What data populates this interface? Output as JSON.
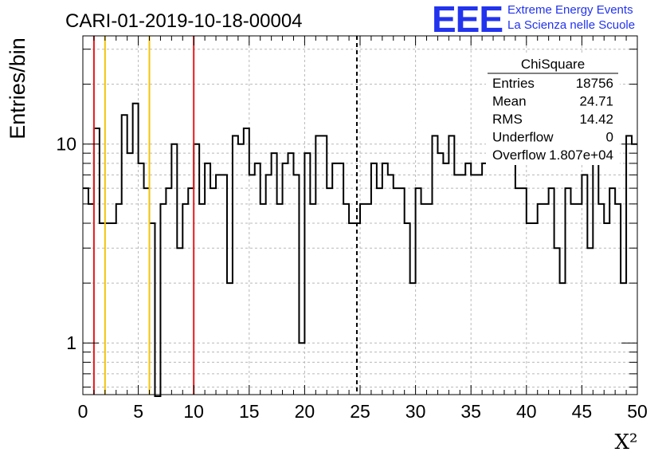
{
  "header": {
    "run_id": "CARI-01-2019-10-18-00004",
    "logo_text": "EEE",
    "logo_line1": "Extreme Energy Events",
    "logo_line2": "La Scienza nelle Scuole",
    "logo_color": "#2233ee"
  },
  "stats": {
    "name": "ChiSquare",
    "rows": [
      {
        "label": "Entries",
        "value": "18756"
      },
      {
        "label": "Mean",
        "value": "24.71"
      },
      {
        "label": "RMS",
        "value": "14.42"
      },
      {
        "label": "Underflow",
        "value": "0"
      },
      {
        "label": "Overflow",
        "value": "1.807e+04"
      }
    ]
  },
  "chart_data": {
    "type": "histogram",
    "xlabel": "X²",
    "ylabel": "Entries/bin",
    "xlim": [
      0,
      50
    ],
    "ylim": [
      0.55,
      35
    ],
    "yscale": "log",
    "grid": true,
    "xticks": [
      0,
      5,
      10,
      15,
      20,
      25,
      30,
      35,
      40,
      45,
      50
    ],
    "yticks": [
      1,
      10
    ],
    "bin_width": 0.5,
    "bin_values": [
      6,
      5,
      12,
      4,
      4,
      4,
      5,
      14,
      9,
      16,
      8,
      6,
      4,
      0,
      5,
      6,
      10,
      3,
      5,
      6,
      10,
      5,
      8,
      6,
      7,
      7,
      2,
      11,
      10,
      12,
      7,
      8,
      5,
      7,
      9,
      5,
      8,
      9,
      7,
      1,
      9,
      5,
      11,
      11,
      6,
      8,
      8,
      5,
      4,
      4,
      5,
      5,
      8,
      6,
      8,
      7,
      6,
      6,
      4,
      2,
      6,
      5,
      5,
      11,
      9,
      8,
      11,
      7,
      7,
      8,
      7,
      7,
      8,
      12,
      10,
      10,
      8,
      10,
      6,
      6,
      4,
      4,
      5,
      5,
      6,
      3,
      2,
      6,
      5,
      5,
      7,
      3,
      12,
      5,
      4,
      6,
      5,
      2,
      11,
      10
    ],
    "vertical_lines": [
      {
        "x": 1,
        "color": "#e8191c",
        "style": "solid"
      },
      {
        "x": 2,
        "color": "#f3c40c",
        "style": "solid"
      },
      {
        "x": 6,
        "color": "#f3c40c",
        "style": "solid"
      },
      {
        "x": 10,
        "color": "#e8191c",
        "style": "solid"
      },
      {
        "x": 24.71,
        "color": "#000000",
        "style": "dashed"
      }
    ]
  }
}
